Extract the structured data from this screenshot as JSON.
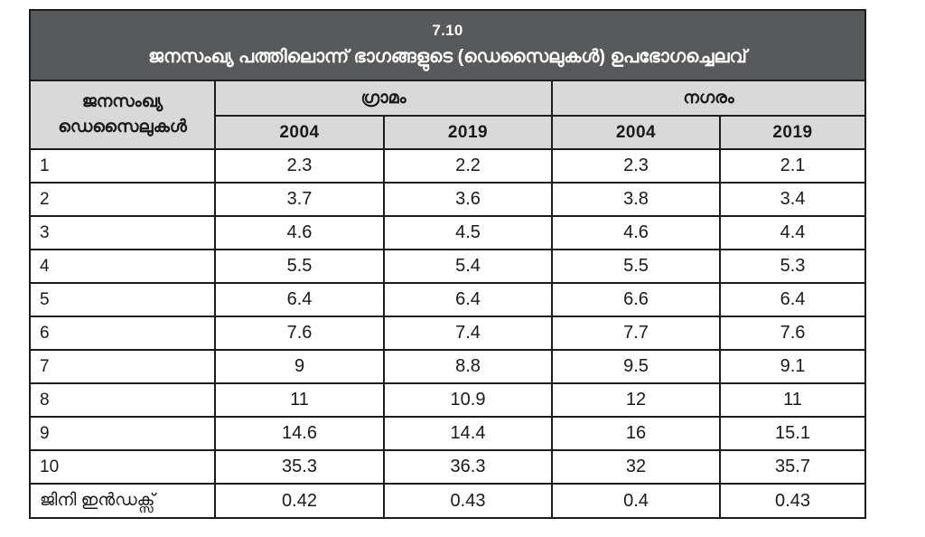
{
  "colors": {
    "title_bg": "#58595b",
    "title_text": "#ffffff",
    "header_bg": "#d9d9d9",
    "border": "#1c1c1c",
    "cell_bg": "#ffffff",
    "text": "#1a1a1a"
  },
  "table": {
    "title_number": "7.10",
    "title_text": "ജനസംഖ്യ പത്തിലൊന്ന് ഭാഗങ്ങളുടെ (ഡെസൈലുകൾ) ഉപഭോഗച്ചെലവ്",
    "row_header_line1": "ജനസംഖ്യ",
    "row_header_line2": "ഡെസൈലുകൾ",
    "group_headers": [
      "ഗ്രാമം",
      "നഗരം"
    ],
    "year_headers": [
      "2004",
      "2019",
      "2004",
      "2019"
    ],
    "rows": [
      {
        "label": "1",
        "values": [
          "2.3",
          "2.2",
          "2.3",
          "2.1"
        ]
      },
      {
        "label": "2",
        "values": [
          "3.7",
          "3.6",
          "3.8",
          "3.4"
        ]
      },
      {
        "label": "3",
        "values": [
          "4.6",
          "4.5",
          "4.6",
          "4.4"
        ]
      },
      {
        "label": "4",
        "values": [
          "5.5",
          "5.4",
          "5.5",
          "5.3"
        ]
      },
      {
        "label": "5",
        "values": [
          "6.4",
          "6.4",
          "6.6",
          "6.4"
        ]
      },
      {
        "label": "6",
        "values": [
          "7.6",
          "7.4",
          "7.7",
          "7.6"
        ]
      },
      {
        "label": "7",
        "values": [
          "9",
          "8.8",
          "9.5",
          "9.1"
        ]
      },
      {
        "label": "8",
        "values": [
          "11",
          "10.9",
          "12",
          "11"
        ]
      },
      {
        "label": "9",
        "values": [
          "14.6",
          "14.4",
          "16",
          "15.1"
        ]
      },
      {
        "label": "10",
        "values": [
          "35.3",
          "36.3",
          "32",
          "35.7"
        ]
      },
      {
        "label": "ജിനി ഇൻഡക്സ്",
        "values": [
          "0.42",
          "0.43",
          "0.4",
          "0.43"
        ]
      }
    ]
  },
  "chart_data": {
    "type": "table",
    "title": "7.10 ജനസംഖ്യ പത്തിലൊന്ന് ഭാഗങ്ങളുടെ (ഡെസൈലുകൾ) ഉപഭോഗച്ചെലവ്",
    "row_header": "ജനസംഖ്യ ഡെസൈലുകൾ",
    "column_groups": [
      {
        "name": "ഗ്രാമം",
        "columns": [
          "2004",
          "2019"
        ]
      },
      {
        "name": "നഗരം",
        "columns": [
          "2004",
          "2019"
        ]
      }
    ],
    "categories": [
      "1",
      "2",
      "3",
      "4",
      "5",
      "6",
      "7",
      "8",
      "9",
      "10",
      "ജിനി ഇൻഡക്സ്"
    ],
    "series": [
      {
        "name": "ഗ്രാമം 2004",
        "values": [
          2.3,
          3.7,
          4.6,
          5.5,
          6.4,
          7.6,
          9,
          11,
          14.6,
          35.3,
          0.42
        ]
      },
      {
        "name": "ഗ്രാമം 2019",
        "values": [
          2.2,
          3.6,
          4.5,
          5.4,
          6.4,
          7.4,
          8.8,
          10.9,
          14.4,
          36.3,
          0.43
        ]
      },
      {
        "name": "നഗരം 2004",
        "values": [
          2.3,
          3.8,
          4.6,
          5.5,
          6.6,
          7.7,
          9.5,
          12,
          16,
          32,
          0.4
        ]
      },
      {
        "name": "നഗരം 2019",
        "values": [
          2.1,
          3.4,
          4.4,
          5.3,
          6.4,
          7.6,
          9.1,
          11,
          15.1,
          35.7,
          0.43
        ]
      }
    ]
  }
}
